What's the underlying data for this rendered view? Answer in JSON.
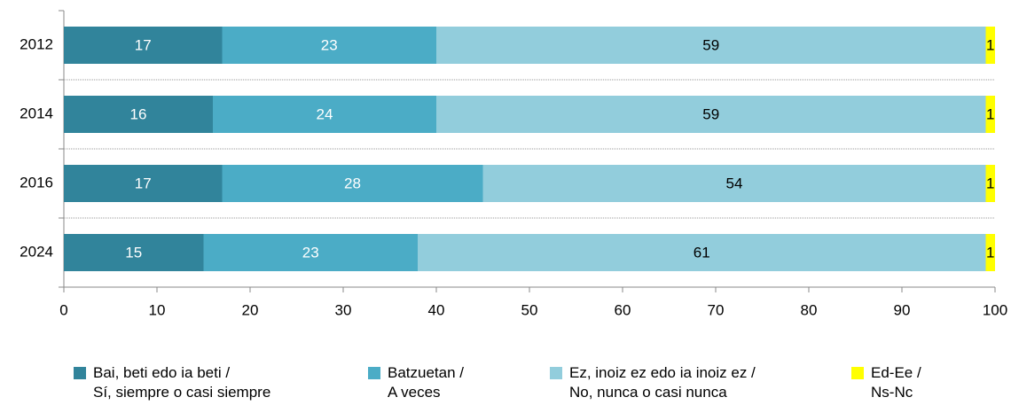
{
  "chart_data": {
    "type": "stacked_barh",
    "categories": [
      "2012",
      "2014",
      "2016",
      "2024"
    ],
    "series": [
      {
        "name": "Bai, beti edo ia beti /\nSí, siempre o casi siempre",
        "color": "#31849b",
        "label_color": "#ffffff",
        "values": [
          17,
          16,
          17,
          15
        ]
      },
      {
        "name": "Batzuetan /\nA veces",
        "color": "#4bacc6",
        "label_color": "#ffffff",
        "values": [
          23,
          24,
          28,
          23
        ]
      },
      {
        "name": "Ez, inoiz ez edo ia inoiz ez /\nNo, nunca o casi nunca",
        "color": "#92cddc",
        "label_color": "#000000",
        "values": [
          59,
          59,
          54,
          61
        ]
      },
      {
        "name": "Ed-Ee /\nNs-Nc",
        "color": "#ffff00",
        "label_color": "#000000",
        "values": [
          1,
          1,
          1,
          1
        ]
      }
    ],
    "xlim": [
      0,
      100
    ],
    "xticks": [
      0,
      10,
      20,
      30,
      40,
      50,
      60,
      70,
      80,
      90,
      100
    ],
    "legend": "bottom"
  }
}
